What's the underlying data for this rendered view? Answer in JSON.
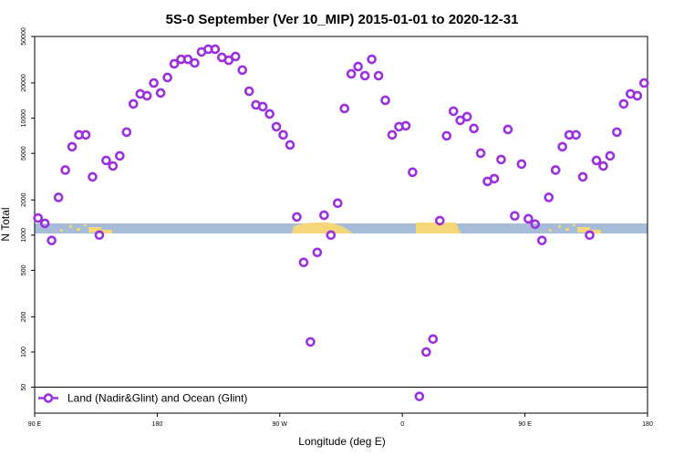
{
  "chart_data": {
    "type": "scatter",
    "title": "5S-0 September (Ver 10_MIP)   2015-01-01 to 2020-12-31",
    "x_label": "Longitude (deg E)",
    "y_label": "N Total",
    "log_y": true,
    "legend": "bottom left",
    "xlim": [
      90,
      540
    ],
    "ylim": [
      30,
      50000
    ],
    "xticks": [
      {
        "value": 90,
        "label": "90 E"
      },
      180,
      {
        "value": 270,
        "label": "90 W"
      },
      {
        "value": 360,
        "label": "0"
      },
      {
        "value": 450,
        "label": "90 E"
      },
      {
        "value": 540,
        "label": "180"
      }
    ],
    "yticks": [
      50,
      100,
      200,
      500,
      1000,
      2000,
      5000,
      10000,
      20000,
      50000
    ],
    "series": [
      {
        "name": "Land (Nadir&Glint) and Ocean (Glint)",
        "color": "#9b30e0",
        "x": [
          92.5,
          97.5,
          102.5,
          107.5,
          112.5,
          117.5,
          122.5,
          127.5,
          132.5,
          137.5,
          142.5,
          147.5,
          152.5,
          157.5,
          162.5,
          167.5,
          172.5,
          177.5,
          182.5,
          187.5,
          192.5,
          197.5,
          202.5,
          207.5,
          212.5,
          217.5,
          222.5,
          227.5,
          232.5,
          237.5,
          242.5,
          247.5,
          252.5,
          257.5,
          262.5,
          267.5,
          272.5,
          277.5,
          282.5,
          287.5,
          292.5,
          297.5,
          302.5,
          307.5,
          312.5,
          317.5,
          322.5,
          327.5,
          332.5,
          337.5,
          342.5,
          347.5,
          352.5,
          357.5,
          362.5,
          367.5,
          372.5,
          377.5,
          382.5,
          387.5,
          392.5,
          397.5,
          402.5,
          407.5,
          412.5,
          417.5,
          422.5,
          427.5,
          432.5,
          437.5,
          442.5,
          447.5,
          452.5,
          457.5,
          462.5,
          467.5,
          472.5,
          477.5,
          482.5,
          487.5,
          492.5,
          497.5,
          502.5,
          507.5,
          512.5,
          517.5,
          522.5,
          527.5,
          532.5,
          537.5
        ],
        "values": [
          1400,
          1260,
          900,
          2100,
          3600,
          5700,
          7200,
          7200,
          3150,
          1000,
          4350,
          3900,
          4760,
          7600,
          13250,
          16150,
          15570,
          20000,
          16450,
          22300,
          29200,
          31900,
          31900,
          29700,
          36900,
          38900,
          38900,
          33100,
          31300,
          33700,
          25800,
          17000,
          13000,
          12560,
          10870,
          8460,
          7200,
          5910,
          1430,
          584,
          122,
          711,
          1480,
          1000,
          1875,
          12100,
          23950,
          27650,
          23100,
          31900,
          23100,
          14230,
          7200,
          8460,
          8610,
          3450,
          41.7,
          100,
          129,
          1330,
          7070,
          11480,
          9590,
          10300,
          8170,
          5020,
          2880,
          3040,
          4430,
          8010,
          1460,
          4050,
          1380,
          1240,
          900,
          2100,
          3600,
          5700,
          7200,
          7200,
          3150,
          1000,
          4350,
          3900,
          4760,
          7600,
          13250,
          16150,
          15570,
          20000
        ]
      }
    ]
  }
}
